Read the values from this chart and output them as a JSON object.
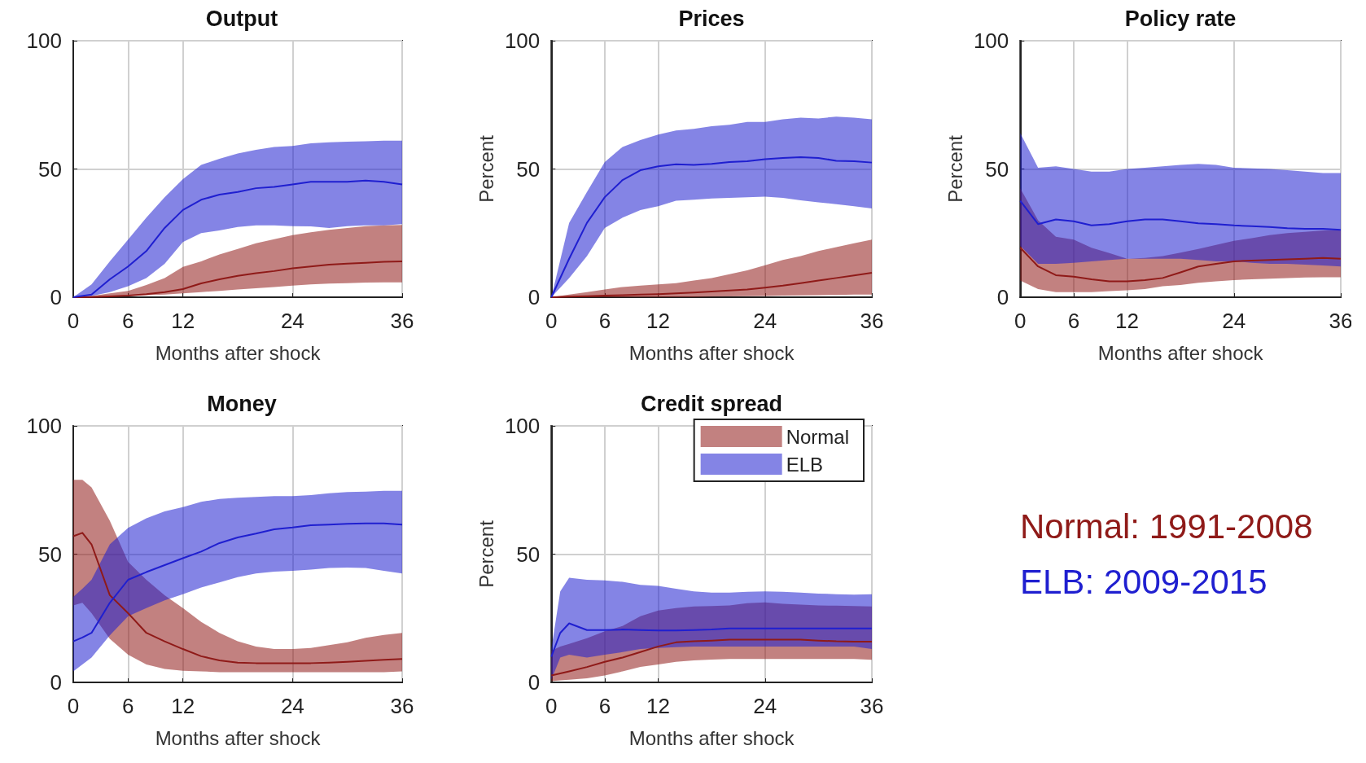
{
  "chart_data": [
    {
      "type": "line",
      "title": "Output",
      "xlabel": "Months after shock",
      "x": [
        0,
        2,
        4,
        6,
        8,
        10,
        12,
        14,
        16,
        18,
        20,
        22,
        24,
        26,
        28,
        30,
        32,
        34,
        36
      ],
      "xlim": [
        0,
        36
      ],
      "xticks": [
        0,
        6,
        12,
        24,
        36
      ],
      "ylim": [
        0,
        100
      ],
      "yticks": [
        0,
        50,
        100
      ],
      "grid": true,
      "series": [
        {
          "color": "#8f1a18",
          "values": [
            0,
            0.1,
            0.3,
            0.6,
            1.2,
            2,
            3.2,
            5.4,
            7,
            8.3,
            9.4,
            10.2,
            11.3,
            12,
            12.7,
            13.1,
            13.4,
            13.8,
            14
          ],
          "lower": [
            0,
            0,
            0.2,
            0.5,
            0.8,
            1,
            1.5,
            2,
            2.5,
            3,
            3.5,
            4,
            4.5,
            5,
            5.3,
            5.5,
            5.7,
            5.8,
            5.8
          ],
          "upper": [
            0,
            0.5,
            1.5,
            2.5,
            4.8,
            7.5,
            11.8,
            14,
            16.7,
            18.8,
            21,
            22.6,
            24.2,
            25.3,
            26.3,
            27,
            27.7,
            28,
            28.2
          ]
        },
        {
          "color": "#1f1fd0",
          "values": [
            0,
            1,
            7,
            12,
            18,
            27,
            34,
            38,
            40,
            41,
            42.5,
            43,
            44,
            45,
            45,
            45,
            45.5,
            45,
            44
          ],
          "lower": [
            0,
            0.5,
            2,
            4.3,
            7.5,
            13,
            21.5,
            25,
            26,
            27.4,
            28,
            28,
            27.7,
            27.6,
            27,
            27.7,
            28,
            28,
            28.5
          ],
          "upper": [
            0,
            5,
            14,
            22.5,
            31,
            39,
            46,
            51.6,
            54,
            56,
            57.5,
            58.6,
            59,
            60,
            60.4,
            60.6,
            60.8,
            61,
            61
          ]
        }
      ]
    },
    {
      "type": "line",
      "title": "Prices",
      "xlabel": "Months after shock",
      "ylabel": "Percent",
      "x": [
        0,
        2,
        4,
        6,
        8,
        10,
        12,
        14,
        16,
        18,
        20,
        22,
        24,
        26,
        28,
        30,
        32,
        34,
        36
      ],
      "xlim": [
        0,
        36
      ],
      "xticks": [
        0,
        6,
        12,
        24,
        36
      ],
      "ylim": [
        0,
        100
      ],
      "yticks": [
        0,
        50,
        100
      ],
      "grid": true,
      "series": [
        {
          "color": "#8f1a18",
          "values": [
            0,
            0.2,
            0.4,
            0.6,
            0.8,
            1,
            1.2,
            1.5,
            1.8,
            2.2,
            2.6,
            3,
            3.7,
            4.5,
            5.5,
            6.5,
            7.5,
            8.5,
            9.5
          ],
          "lower": [
            0,
            0,
            0,
            0,
            0,
            0,
            0,
            0,
            0,
            0.2,
            0.3,
            0.4,
            0.5,
            0.6,
            0.7,
            0.8,
            0.9,
            1,
            1
          ],
          "upper": [
            0,
            1,
            2,
            3,
            4,
            4.5,
            5,
            5.5,
            6.5,
            7.5,
            9,
            10.5,
            12.5,
            14.5,
            16,
            18,
            19.5,
            21,
            22.5
          ]
        },
        {
          "color": "#1f1fd0",
          "values": [
            0,
            15,
            29,
            39,
            45.7,
            49.5,
            51,
            51.8,
            51.6,
            52,
            52.7,
            53,
            53.8,
            54.3,
            54.6,
            54.3,
            53.2,
            53,
            52.5
          ],
          "lower": [
            0,
            7.5,
            16,
            27,
            31,
            34,
            35.5,
            37.6,
            38,
            38.5,
            38.7,
            39,
            39.2,
            38.7,
            37.8,
            37,
            36.3,
            35.5,
            34.6
          ],
          "upper": [
            0,
            29,
            41,
            52.7,
            58.6,
            61.3,
            63.4,
            65,
            65.6,
            66.7,
            67.2,
            68.3,
            68.3,
            69.4,
            70,
            69.7,
            70.4,
            70,
            69.4
          ]
        }
      ]
    },
    {
      "type": "line",
      "title": "Policy rate",
      "xlabel": "Months after shock",
      "ylabel": "Percent",
      "x": [
        0,
        2,
        4,
        6,
        8,
        10,
        12,
        14,
        16,
        18,
        20,
        22,
        24,
        26,
        28,
        30,
        32,
        34,
        36
      ],
      "xlim": [
        0,
        36
      ],
      "xticks": [
        0,
        6,
        12,
        24,
        36
      ],
      "ylim": [
        0,
        100
      ],
      "yticks": [
        0,
        50,
        100
      ],
      "grid": true,
      "series": [
        {
          "color": "#8f1a18",
          "values": [
            19.3,
            12,
            8.6,
            8,
            7,
            6.2,
            6.2,
            6.7,
            7.5,
            9.7,
            12,
            13,
            14,
            14.3,
            14.5,
            14.8,
            15,
            15.3,
            15
          ],
          "lower": [
            6.5,
            3.2,
            2,
            2,
            2,
            2.4,
            2.7,
            3.2,
            4.3,
            4.8,
            5.6,
            6.2,
            6.7,
            7,
            7.2,
            7.5,
            7.7,
            7.8,
            7.8
          ],
          "upper": [
            42.5,
            30,
            23.6,
            22.5,
            19.3,
            17.2,
            15,
            15.3,
            16,
            17.4,
            18.8,
            20.4,
            22,
            23,
            24.2,
            25,
            25.5,
            26,
            26.3
          ]
        },
        {
          "color": "#1f1fd0",
          "values": [
            37.6,
            28.5,
            30.3,
            29.6,
            28,
            28.5,
            29.6,
            30.3,
            30.3,
            29.6,
            28.8,
            28.5,
            28,
            27.7,
            27.4,
            26.9,
            26.7,
            26.7,
            26.3
          ],
          "lower": [
            20,
            13,
            13,
            13.4,
            14,
            14.5,
            15,
            15,
            15,
            15,
            14.5,
            14,
            14,
            13.4,
            13,
            13,
            12.7,
            12.4,
            12
          ],
          "upper": [
            64,
            50.5,
            51,
            50,
            49,
            49,
            50,
            50.5,
            51,
            51.6,
            52,
            51.6,
            50.5,
            50.2,
            50,
            49.5,
            49,
            48.4,
            48.4
          ]
        }
      ]
    },
    {
      "type": "line",
      "title": "Money",
      "xlabel": "Months after shock",
      "x": [
        0,
        1,
        2,
        4,
        6,
        8,
        10,
        12,
        14,
        16,
        18,
        20,
        22,
        24,
        26,
        28,
        30,
        32,
        34,
        36
      ],
      "xlim": [
        0,
        36
      ],
      "xticks": [
        0,
        6,
        12,
        24,
        36
      ],
      "ylim": [
        0,
        100
      ],
      "yticks": [
        0,
        50,
        100
      ],
      "grid": true,
      "series": [
        {
          "color": "#8f1a18",
          "values": [
            57,
            58.3,
            53.8,
            34,
            27,
            19.3,
            16,
            13,
            10.2,
            8.6,
            7.7,
            7.5,
            7.5,
            7.5,
            7.5,
            7.7,
            8,
            8.4,
            8.8,
            9.1
          ],
          "lower": [
            30,
            31,
            27,
            17,
            10.8,
            7,
            5.2,
            4.5,
            4.3,
            4,
            4,
            4,
            4,
            4,
            4,
            4,
            4,
            4,
            4,
            4.3
          ],
          "upper": [
            79,
            79,
            76,
            63,
            47,
            40,
            34,
            29,
            23.6,
            19.3,
            16,
            14,
            13,
            13,
            13.4,
            14.5,
            15.6,
            17.4,
            18.5,
            19.3
          ]
        },
        {
          "color": "#1f1fd0",
          "values": [
            16,
            17.5,
            19.3,
            31,
            40,
            43,
            45.7,
            48.4,
            51,
            54.3,
            56.5,
            58,
            59.7,
            60.4,
            61.3,
            61.5,
            61.8,
            62,
            62,
            61.5
          ],
          "lower": [
            4.3,
            7,
            9.7,
            18.3,
            25.8,
            29,
            32,
            34.4,
            37,
            39,
            41,
            42.5,
            43.2,
            43.5,
            44,
            44.6,
            44.8,
            44.6,
            43.5,
            42.5
          ],
          "upper": [
            33.3,
            36.5,
            40,
            53.8,
            60.2,
            64,
            66.7,
            68.3,
            70.4,
            71.5,
            72,
            72.3,
            72.6,
            72.6,
            73,
            73.7,
            74.2,
            74.4,
            74.7,
            74.7
          ]
        }
      ]
    },
    {
      "type": "line",
      "title": "Credit spread",
      "xlabel": "Months after shock",
      "ylabel": "Percent",
      "x": [
        0,
        1,
        2,
        4,
        6,
        8,
        10,
        12,
        14,
        16,
        18,
        20,
        22,
        24,
        26,
        28,
        30,
        32,
        34,
        36
      ],
      "xlim": [
        0,
        36
      ],
      "xticks": [
        0,
        6,
        12,
        24,
        36
      ],
      "ylim": [
        0,
        100
      ],
      "yticks": [
        0,
        50,
        100
      ],
      "grid": true,
      "legend": "top right",
      "series": [
        {
          "name": "Normal",
          "color": "#8f1a18",
          "values": [
            2.7,
            3.5,
            4.3,
            6,
            8,
            9.7,
            11.8,
            14,
            15.6,
            16,
            16.3,
            16.7,
            16.7,
            16.7,
            16.7,
            16.7,
            16.3,
            16,
            15.9,
            15.9
          ],
          "lower": [
            0.5,
            0.8,
            1,
            1.6,
            2.7,
            4.3,
            6,
            7,
            8,
            8.6,
            8.9,
            9.1,
            9.1,
            9.1,
            9.1,
            9.1,
            9.1,
            9.1,
            9.1,
            8.8
          ],
          "upper": [
            12.4,
            14,
            15,
            17.2,
            19.9,
            22,
            25.8,
            28,
            29,
            29.6,
            29.8,
            30,
            30.9,
            31.2,
            30.6,
            30.3,
            30,
            29.9,
            29.8,
            29.6
          ]
        },
        {
          "name": "ELB",
          "color": "#1f1fd0",
          "values": [
            10,
            19.3,
            23,
            20.4,
            20.4,
            20.6,
            20.4,
            20.2,
            20.2,
            20.4,
            20.6,
            21,
            21,
            21,
            21,
            21,
            21,
            21,
            21,
            21
          ],
          "lower": [
            1,
            9.7,
            10.8,
            9.7,
            10.8,
            11.8,
            13,
            13.4,
            13.7,
            14,
            14,
            14,
            14,
            14,
            14,
            14,
            14,
            14,
            14,
            13
          ],
          "upper": [
            13,
            35.5,
            40.8,
            40,
            39.8,
            39.2,
            38,
            37.6,
            36.5,
            35.5,
            35,
            35,
            35.3,
            35.5,
            35.3,
            35,
            34.6,
            34.4,
            34.2,
            34.4
          ]
        }
      ]
    },
    {
      "type": "other",
      "annotations": [
        "Normal: 1991-2008",
        "ELB: 2009-2015"
      ]
    }
  ]
}
